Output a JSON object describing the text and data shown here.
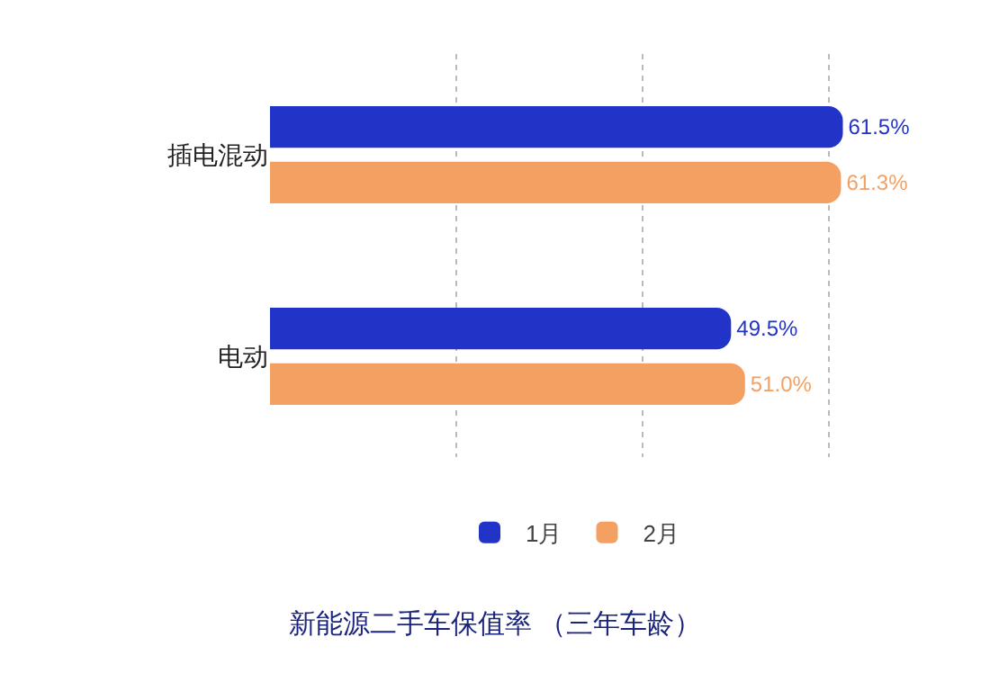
{
  "chart_data": {
    "type": "bar",
    "orientation": "horizontal",
    "title": "新能源二手车保值率 （三年车龄）",
    "categories": [
      "插电混动",
      "电动"
    ],
    "series": [
      {
        "name": "1月",
        "color": "#2233c8",
        "values": [
          61.5,
          49.5
        ],
        "value_labels": [
          "61.5%",
          "49.5%"
        ]
      },
      {
        "name": "2月",
        "color": "#f4a062",
        "values": [
          61.3,
          51.0
        ],
        "value_labels": [
          "61.3%",
          "51.0%"
        ]
      }
    ],
    "grid": "x",
    "legend": "bottom",
    "tick_labels": "y"
  }
}
